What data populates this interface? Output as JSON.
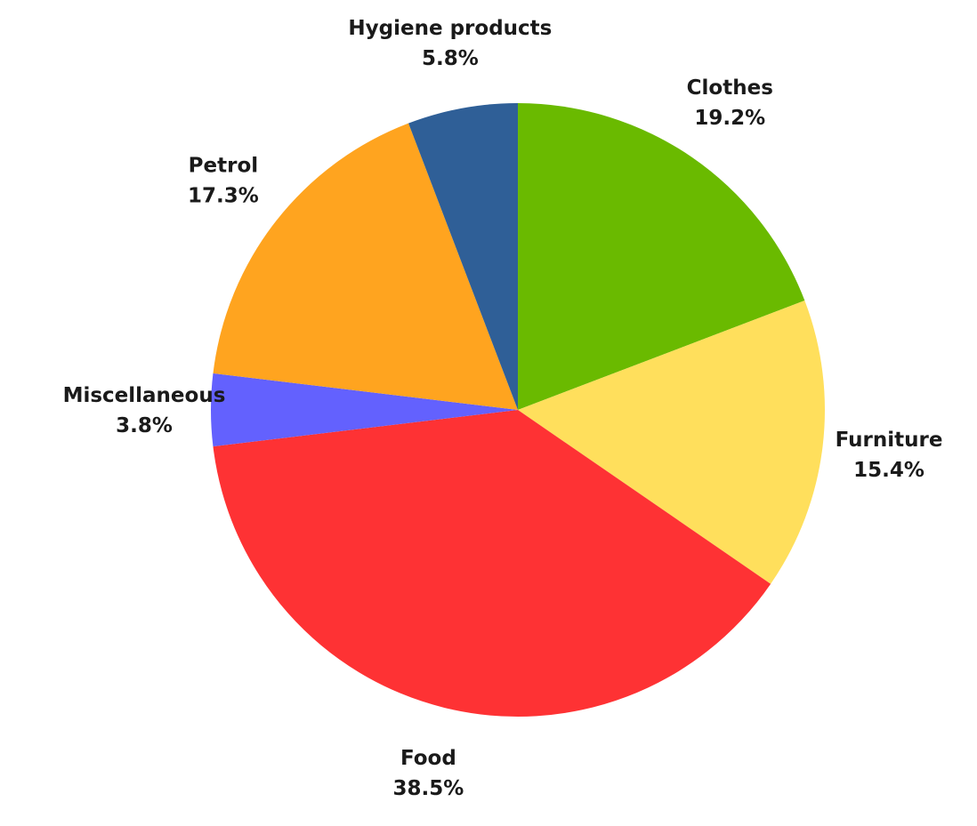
{
  "chart_data": {
    "type": "pie",
    "title": "",
    "start": "12 o'clock",
    "direction": "clockwise",
    "slices": [
      {
        "label": "Clothes",
        "value": 19.2,
        "pct_label": "19.2%",
        "color": "#6aba00"
      },
      {
        "label": "Furniture",
        "value": 15.4,
        "pct_label": "15.4%",
        "color": "#ffdf5c"
      },
      {
        "label": "Food",
        "value": 38.5,
        "pct_label": "38.5%",
        "color": "#fe3234"
      },
      {
        "label": "Miscellaneous",
        "value": 3.8,
        "pct_label": "3.8%",
        "color": "#6361fe"
      },
      {
        "label": "Petrol",
        "value": 17.3,
        "pct_label": "17.3%",
        "color": "#ffa41f"
      },
      {
        "label": "Hygiene products",
        "value": 5.8,
        "pct_label": "5.8%",
        "color": "#2f5f97"
      }
    ]
  }
}
